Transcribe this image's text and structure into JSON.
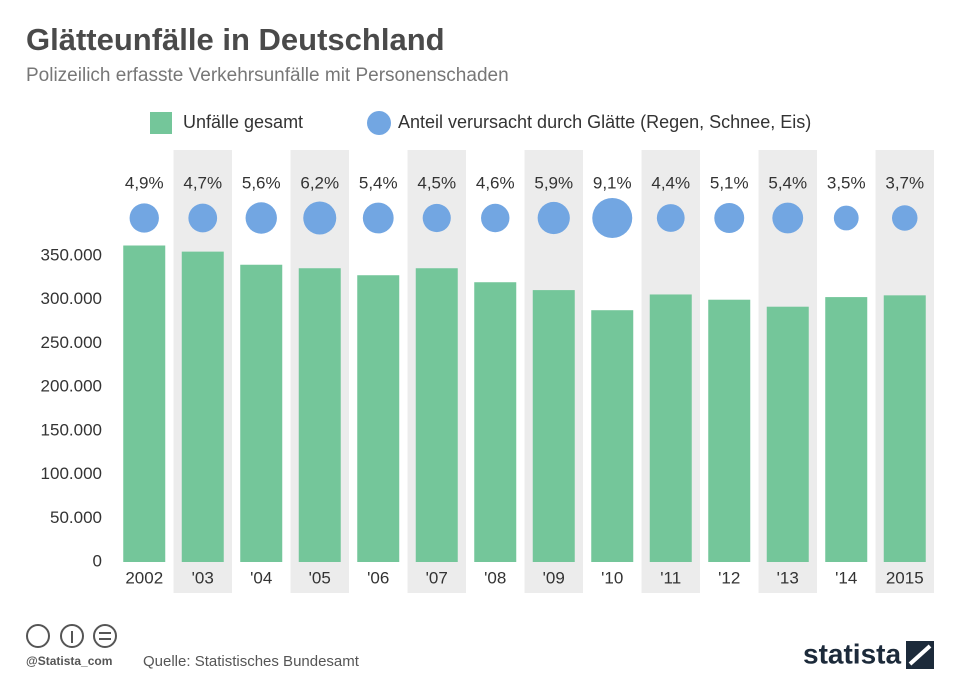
{
  "chart_data": {
    "type": "bar",
    "title": "Glätteunfälle in Deutschland",
    "subtitle": "Polizeilich erfasste Verkehrsunfälle mit Personenschaden",
    "categories": [
      "2002",
      "'03",
      "'04",
      "'05",
      "'06",
      "'07",
      "'08",
      "'09",
      "'10",
      "'11",
      "'12",
      "'13",
      "'14",
      "2015"
    ],
    "series": [
      {
        "name": "Unfälle gesamt",
        "color": "#74c69a",
        "values": [
          362000,
          355000,
          340000,
          336000,
          328000,
          336000,
          320000,
          311000,
          288000,
          306000,
          300000,
          292000,
          303000,
          305000
        ]
      },
      {
        "name": "Anteil verursacht durch Glätte (Regen, Schnee, Eis)",
        "color": "#72a6e2",
        "type": "bubble",
        "values": [
          4.9,
          4.7,
          5.6,
          6.2,
          5.4,
          4.5,
          4.6,
          5.9,
          9.1,
          4.4,
          5.1,
          5.4,
          3.5,
          3.7
        ],
        "value_labels": [
          "4,9%",
          "4,7%",
          "5,6%",
          "6,2%",
          "5,4%",
          "4,5%",
          "4,6%",
          "5,9%",
          "9,1%",
          "4,4%",
          "5,1%",
          "5,4%",
          "3,5%",
          "3,7%"
        ]
      }
    ],
    "ylim": [
      0,
      350000
    ],
    "yticks": [
      0,
      {
        "value": 50000,
        "label": "50.000"
      },
      {
        "value": 100000,
        "label": "100.000"
      },
      {
        "value": 150000,
        "label": "150.000"
      },
      {
        "value": 200000,
        "label": "200.000"
      },
      {
        "value": 250000,
        "label": "250.000"
      },
      {
        "value": 300000,
        "label": "300.000"
      },
      {
        "value": 350000,
        "label": "350.000"
      }
    ],
    "source": "Quelle: Statistisches Bundesamt"
  },
  "footer": {
    "handle": "@Statista_com",
    "logo": "statista"
  }
}
